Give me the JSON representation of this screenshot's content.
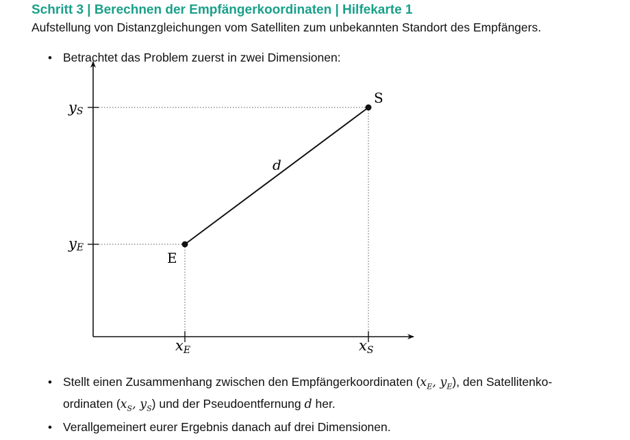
{
  "header": {
    "title": "Schritt 3  |  Berechnen der Empfängerkoordinaten  |  Hilfekarte 1",
    "subtitle": "Aufstellung von Distanzgleichungen vom Satelliten zum unbekannten Standort des Empfängers."
  },
  "bullets": [
    {
      "marker": "•",
      "text": "Betrachtet das Problem zuerst in zwei Dimensionen:"
    },
    {
      "marker": "•",
      "line1_a": "Stellt einen Zusammenhang zwischen den Empfängerkoordinaten (",
      "line1_b": "), den Satellitenko-",
      "line2_a": "ordinaten (",
      "line2_b": ") und der Pseudoentfernung ",
      "line2_c": " her."
    },
    {
      "marker": "•",
      "text": "Verallgemeinert eurer Ergebnis danach auf drei Dimensionen."
    }
  ],
  "math": {
    "receiver_coords": "x",
    "receiver_sub": "E",
    "comma_y": ", y",
    "satellite_sub": "S",
    "distance": "d"
  },
  "diagram": {
    "point_s_label": "S",
    "point_e_label": "E",
    "distance_label": "d",
    "y_s_label": "y",
    "y_s_sub": "S",
    "y_e_label": "y",
    "y_e_sub": "E",
    "x_e_label": "x",
    "x_e_sub": "E",
    "x_s_label": "x",
    "x_s_sub": "S"
  }
}
